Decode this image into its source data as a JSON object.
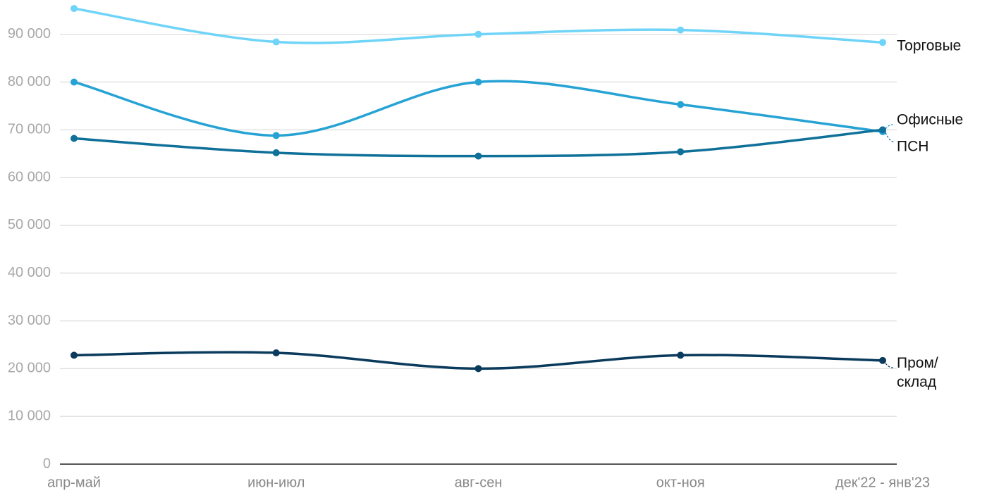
{
  "chart_data": {
    "type": "line",
    "categories": [
      "апр-май",
      "июн-июл",
      "авг-сен",
      "окт-ноя",
      "дек'22 - янв'23"
    ],
    "series": [
      {
        "name": "Торговые",
        "color": "#6fd4f8",
        "values": [
          95400,
          88400,
          90000,
          90900,
          88300
        ]
      },
      {
        "name": "Офисные",
        "color": "#26a3d4",
        "values": [
          80000,
          68800,
          80000,
          75300,
          69600
        ]
      },
      {
        "name": "ПСН",
        "color": "#0f7099",
        "values": [
          68200,
          65200,
          64500,
          65400,
          70000
        ]
      },
      {
        "name": "Пром/ склад",
        "color": "#0a3a5c",
        "values": [
          22800,
          23300,
          20000,
          22800,
          21700
        ]
      }
    ],
    "ylim": [
      0,
      96000
    ],
    "yticks": [
      0,
      {
        "value": 10000,
        "label": "10 000"
      },
      {
        "value": 20000,
        "label": "20 000"
      },
      {
        "value": 30000,
        "label": "30 000"
      },
      {
        "value": 40000,
        "label": "40 000"
      },
      {
        "value": 50000,
        "label": "50 000"
      },
      {
        "value": 60000,
        "label": "60 000"
      },
      {
        "value": 70000,
        "label": "70 000"
      },
      {
        "value": 80000,
        "label": "80 000"
      },
      {
        "value": 90000,
        "label": "90 000"
      }
    ],
    "grid": true
  }
}
